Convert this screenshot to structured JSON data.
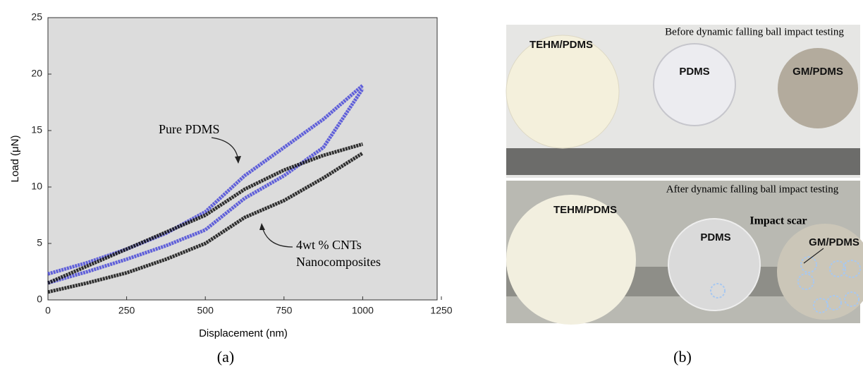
{
  "chart_data": {
    "type": "line",
    "x_label": "Displacement (nm)",
    "y_label": "Load (μN)",
    "xlim": [
      0,
      1250
    ],
    "xticks": [
      0,
      250,
      500,
      750,
      1000,
      1250
    ],
    "ylim": [
      0,
      25
    ],
    "yticks": [
      0,
      5,
      10,
      15,
      20,
      25
    ],
    "series": [
      {
        "color": "#4a4ad8",
        "x": [
          0,
          125,
          250,
          375,
          500,
          625,
          750,
          875,
          1000
        ],
        "values": [
          2.3,
          3.3,
          4.5,
          5.9,
          7.8,
          11,
          13.5,
          16,
          19
        ]
      },
      {
        "color": "#4a4ad8",
        "x": [
          0,
          125,
          250,
          375,
          500,
          625,
          750,
          875,
          1000
        ],
        "values": [
          1.5,
          2.5,
          3.6,
          4.8,
          6.2,
          9,
          11,
          13.5,
          18.7
        ]
      },
      {
        "color": "#111111",
        "x": [
          0,
          125,
          250,
          375,
          500,
          625,
          750,
          875,
          1000
        ],
        "values": [
          1.5,
          3,
          4.5,
          6,
          7.5,
          9.8,
          11.5,
          12.8,
          13.8
        ]
      },
      {
        "color": "#111111",
        "x": [
          0,
          125,
          250,
          375,
          500,
          625,
          750,
          875,
          1000
        ],
        "values": [
          0.7,
          1.5,
          2.4,
          3.6,
          5,
          7.3,
          8.8,
          10.8,
          13
        ]
      }
    ],
    "annotations": [
      "Pure PDMS",
      "4wt % CNTs",
      "Nanocomposites"
    ],
    "panel_label": "(a)"
  },
  "photo": {
    "panel_label": "(b)",
    "before": {
      "caption": "Before dynamic falling ball impact testing",
      "labels": [
        "TEHM/PDMS",
        "PDMS",
        "GM/PDMS"
      ]
    },
    "after": {
      "caption": "After dynamic falling ball impact testing",
      "labels": [
        "TEHM/PDMS",
        "PDMS",
        "GM/PDMS"
      ],
      "note": "Impact scar"
    }
  }
}
